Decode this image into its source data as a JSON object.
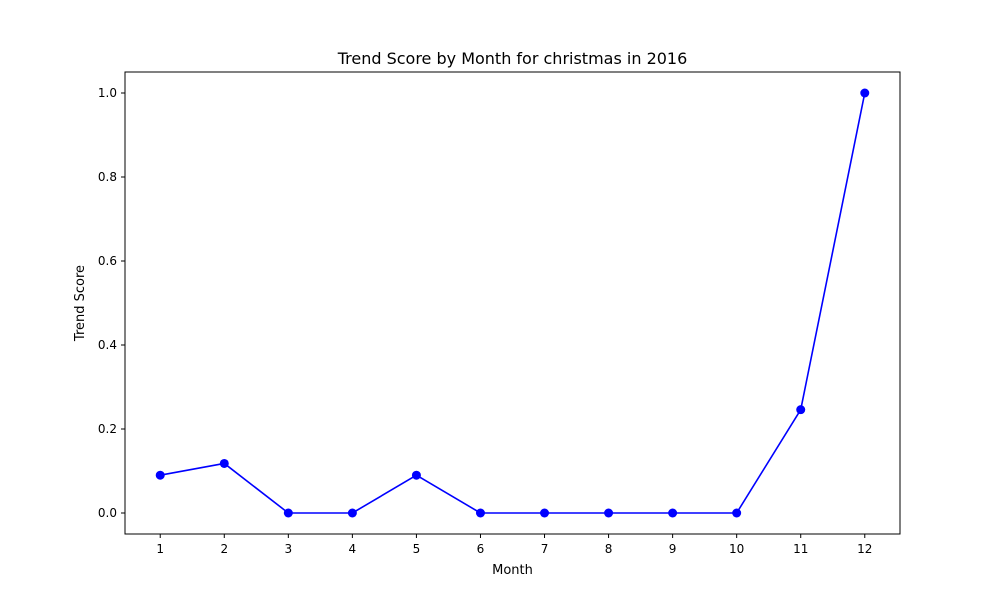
{
  "chart_data": {
    "type": "line",
    "title": "Trend Score by Month for christmas in 2016",
    "xlabel": "Month",
    "ylabel": "Trend Score",
    "x": [
      1,
      2,
      3,
      4,
      5,
      6,
      7,
      8,
      9,
      10,
      11,
      12
    ],
    "series": [
      {
        "values": [
          0.09,
          0.118,
          0.0,
          0.0,
          0.09,
          0.0,
          0.0,
          0.0,
          0.0,
          0.0,
          0.246,
          1.0
        ],
        "color": "#0000ff",
        "marker": "circle"
      }
    ],
    "xticks": [
      "1",
      "2",
      "3",
      "4",
      "5",
      "6",
      "7",
      "8",
      "9",
      "10",
      "11",
      "12"
    ],
    "yticks": [
      "0.0",
      "0.2",
      "0.4",
      "0.6",
      "0.8",
      "1.0"
    ],
    "xlim": [
      0.45,
      12.55
    ],
    "ylim": [
      -0.05,
      1.05
    ],
    "grid": false,
    "legend": "none"
  }
}
